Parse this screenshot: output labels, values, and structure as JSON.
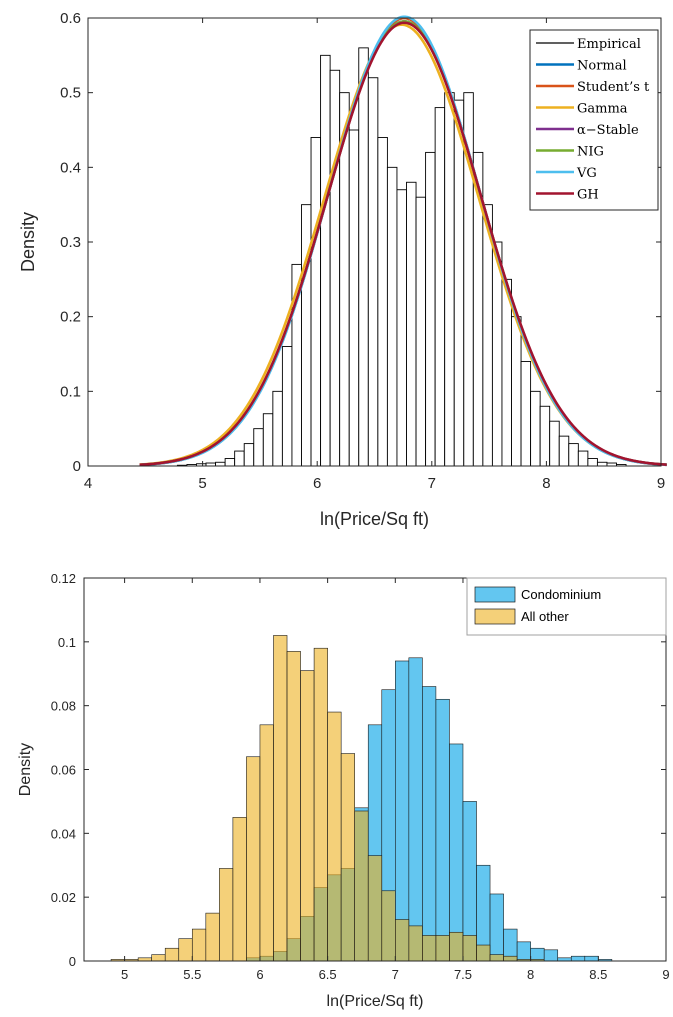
{
  "chart_data": [
    {
      "type": "bar",
      "title": "",
      "xlabel": "ln(Price/Sq ft)",
      "ylabel": "Density",
      "xlim": [
        4,
        9
      ],
      "ylim": [
        0,
        0.6
      ],
      "x_ticks": [
        "4",
        "5",
        "6",
        "7",
        "8",
        "9"
      ],
      "y_ticks": [
        "0",
        "0.1",
        "0.2",
        "0.3",
        "0.4",
        "0.5",
        "0.6"
      ],
      "grid": false,
      "legend_position": "top-right",
      "histogram": {
        "name": "Empirical",
        "bin_start": 4.78,
        "bin_width": 0.0833,
        "values": [
          0.001,
          0.002,
          0.003,
          0.004,
          0.005,
          0.01,
          0.02,
          0.03,
          0.05,
          0.07,
          0.1,
          0.16,
          0.27,
          0.35,
          0.44,
          0.55,
          0.53,
          0.5,
          0.45,
          0.56,
          0.52,
          0.44,
          0.4,
          0.37,
          0.38,
          0.36,
          0.42,
          0.48,
          0.5,
          0.49,
          0.5,
          0.42,
          0.35,
          0.3,
          0.25,
          0.2,
          0.14,
          0.1,
          0.08,
          0.06,
          0.04,
          0.03,
          0.02,
          0.01,
          0.005,
          0.004,
          0.002
        ]
      },
      "series": [
        {
          "name": "Empirical",
          "color": "#000000"
        },
        {
          "name": "Normal",
          "color": "#0072BD",
          "mu": 6.76,
          "sigma": 0.665
        },
        {
          "name": "Student’s t",
          "color": "#D95319",
          "mu": 6.76,
          "sigma": 0.665
        },
        {
          "name": "Gamma",
          "color": "#EDB120",
          "mu": 6.75,
          "sigma": 0.675,
          "skew_shift": -0.03
        },
        {
          "name": "α−Stable",
          "color": "#7E2F8E",
          "mu": 6.76,
          "sigma": 0.67
        },
        {
          "name": "NIG",
          "color": "#77AC30",
          "mu": 6.76,
          "sigma": 0.67
        },
        {
          "name": "VG",
          "color": "#4DBEEE",
          "mu": 6.76,
          "sigma": 0.663
        },
        {
          "name": "GH",
          "color": "#A2142F",
          "mu": 6.76,
          "sigma": 0.672
        }
      ],
      "curve_x_range": [
        4.45,
        9.05
      ]
    },
    {
      "type": "bar",
      "title": "",
      "xlabel": "ln(Price/Sq ft)",
      "ylabel": "Density",
      "xlim": [
        4.7,
        9
      ],
      "ylim": [
        0,
        0.12
      ],
      "x_ticks": [
        "5",
        "5.5",
        "6",
        "6.5",
        "7",
        "7.5",
        "8",
        "8.5",
        "9"
      ],
      "y_ticks": [
        "0",
        "0.02",
        "0.04",
        "0.06",
        "0.08",
        "0.1",
        "0.12"
      ],
      "grid": false,
      "legend_position": "top-right",
      "series": [
        {
          "name": "Condominium",
          "color": "#4DBEEE",
          "bin_start": 4.8,
          "bin_width": 0.1,
          "values": [
            0,
            0,
            0,
            0,
            0,
            0,
            0,
            0,
            0,
            0,
            0,
            0.001,
            0.0015,
            0.003,
            0.007,
            0.014,
            0.023,
            0.027,
            0.029,
            0.048,
            0.074,
            0.085,
            0.094,
            0.095,
            0.086,
            0.082,
            0.068,
            0.05,
            0.03,
            0.021,
            0.01,
            0.006,
            0.004,
            0.0035,
            0.001,
            0.0015,
            0.0015,
            0.0005,
            0
          ]
        },
        {
          "name": "All other",
          "color": "#EDB120",
          "bin_start": 4.8,
          "bin_width": 0.1,
          "values": [
            0,
            0.0005,
            0.0005,
            0.001,
            0.002,
            0.004,
            0.007,
            0.01,
            0.015,
            0.029,
            0.045,
            0.064,
            0.074,
            0.102,
            0.097,
            0.091,
            0.098,
            0.078,
            0.065,
            0.047,
            0.033,
            0.022,
            0.013,
            0.011,
            0.008,
            0.008,
            0.009,
            0.008,
            0.005,
            0.002,
            0.0015,
            0.0005,
            0.0005,
            0,
            0,
            0,
            0,
            0,
            0
          ]
        }
      ]
    }
  ]
}
